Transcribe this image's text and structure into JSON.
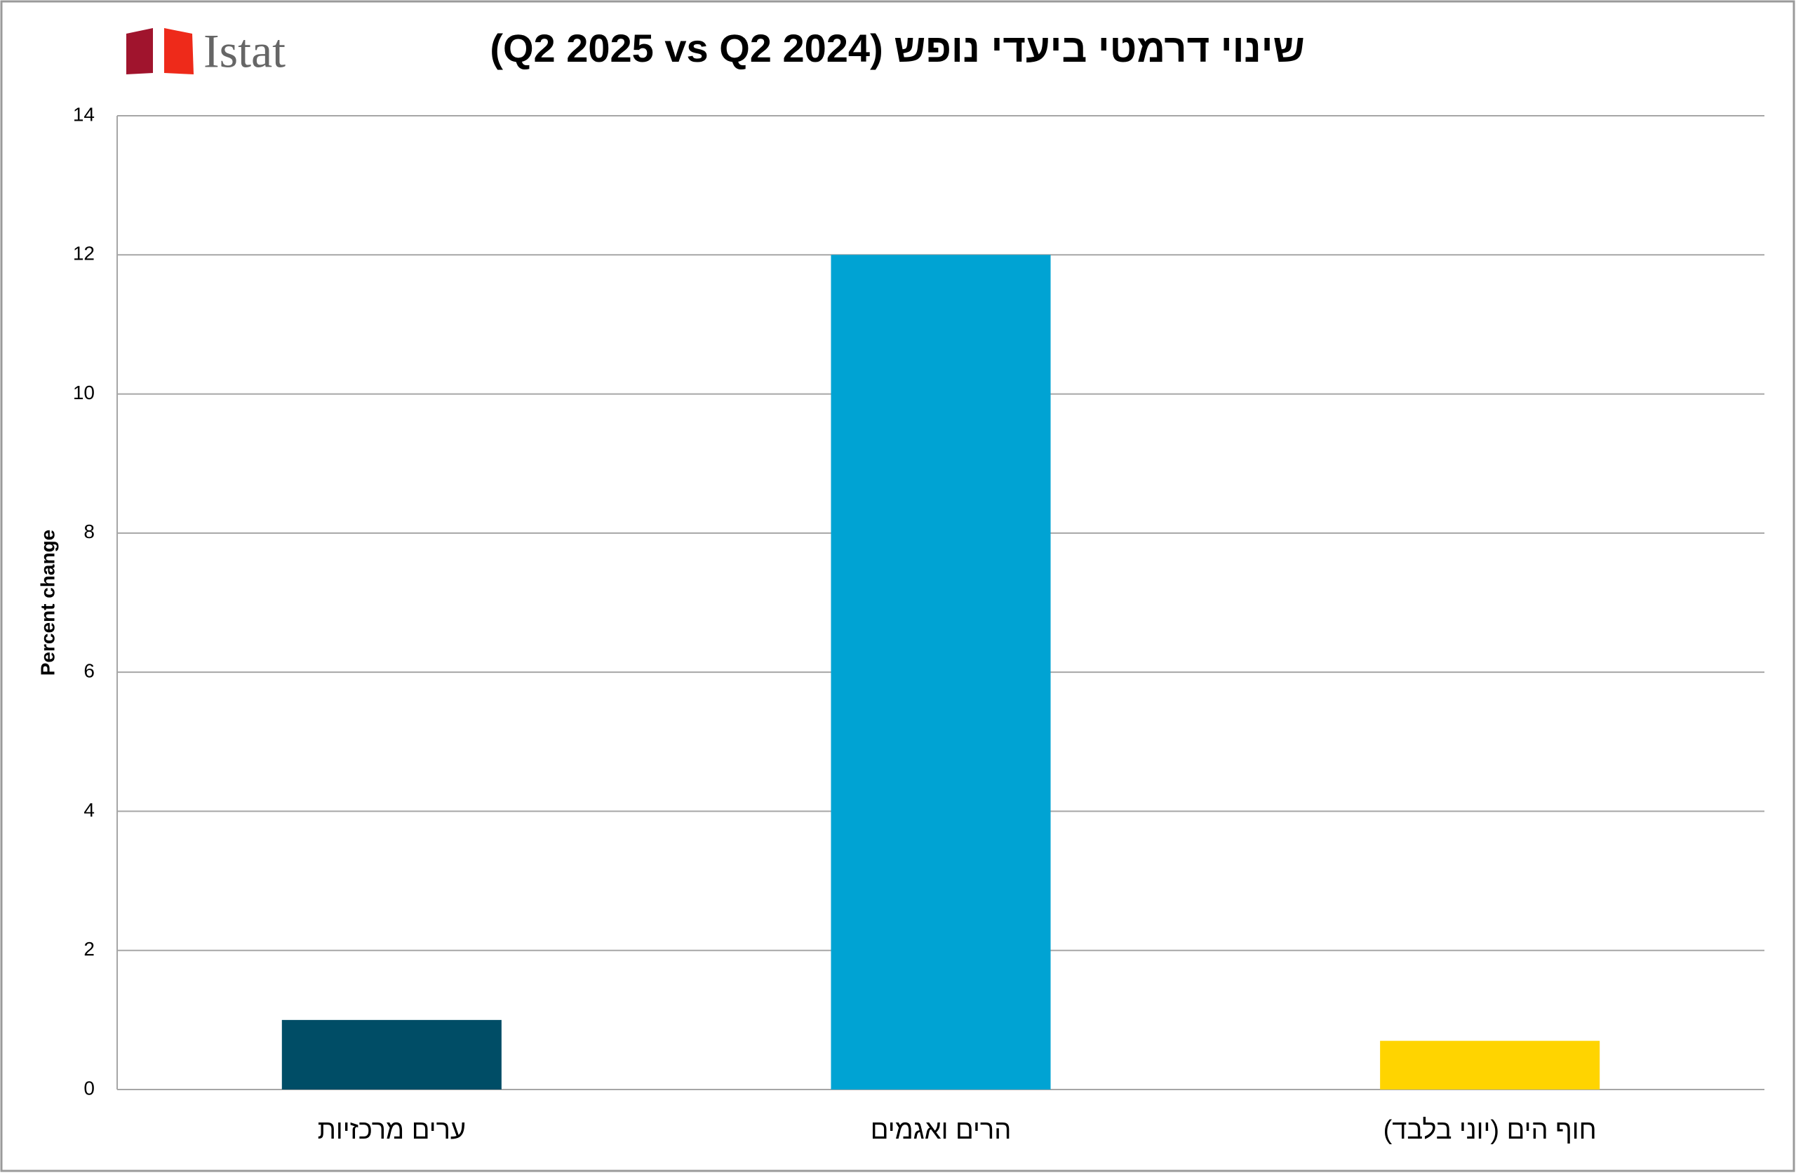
{
  "chart_data": {
    "type": "bar",
    "title": "שינוי דרמטי ביעדי נופש (Q2 2025 vs Q2 2024)",
    "logo": "Istat",
    "y_label": "Percent change",
    "categories": [
      "ערים מרכזיות",
      "הרים ואגמים",
      "חוף הים (יוני בלבד)"
    ],
    "values": [
      1,
      12,
      0.7
    ],
    "colors": [
      "#004d66",
      "#00a3d3",
      "#ffd400"
    ],
    "ylim": [
      0,
      14
    ],
    "yticks": [
      0,
      2,
      4,
      6,
      8,
      10,
      12,
      14
    ],
    "grid": true
  }
}
